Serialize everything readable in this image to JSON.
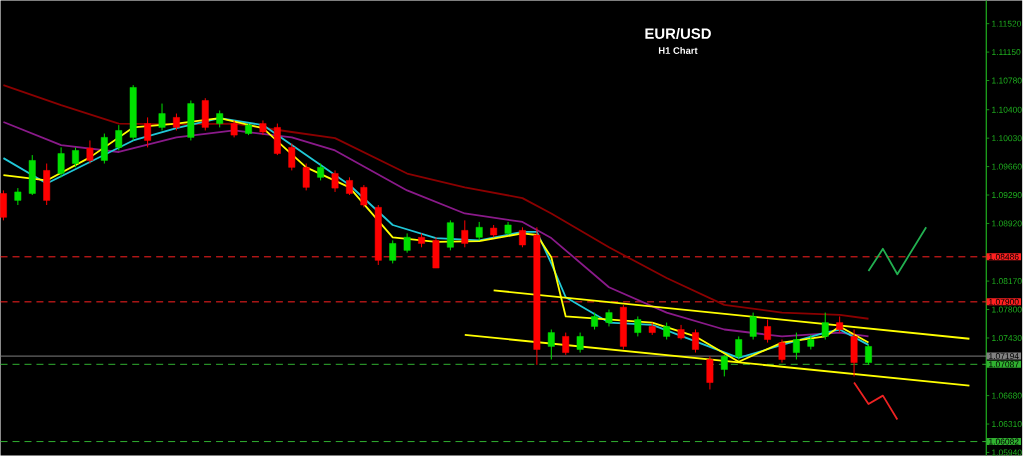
{
  "chart_data": {
    "type": "candlestick",
    "title": "EUR/USD",
    "subtitle": "H1 Chart",
    "categories": [
      null,
      null,
      null,
      null,
      null,
      null,
      null,
      null,
      null,
      null,
      null,
      null,
      null,
      null,
      null,
      null,
      null,
      null,
      null,
      null,
      null,
      null,
      null,
      null,
      null,
      null,
      null,
      null,
      null,
      null,
      null,
      null,
      null,
      null,
      null,
      null,
      null,
      null,
      null,
      null,
      null,
      null,
      null,
      null,
      null,
      null,
      null,
      null,
      null,
      null,
      null,
      null,
      null,
      null,
      null,
      null,
      null,
      null,
      null,
      null,
      null,
      null,
      null,
      null,
      null,
      null,
      null,
      null
    ],
    "ohlc": [
      [
        1.0931,
        1.0935,
        1.0896,
        1.09
      ],
      [
        1.0922,
        1.0938,
        1.0916,
        1.0933
      ],
      [
        1.0931,
        1.0981,
        1.0929,
        1.0974
      ],
      [
        1.0961,
        1.097,
        1.0916,
        1.0922
      ],
      [
        1.0957,
        1.0991,
        1.0952,
        1.0983
      ],
      [
        1.097,
        1.0991,
        1.0965,
        1.0987
      ],
      [
        1.099,
        1.1,
        1.097,
        1.0974
      ],
      [
        1.0974,
        1.1009,
        1.097,
        1.1004
      ],
      [
        1.0991,
        1.102,
        1.0987,
        1.1013
      ],
      [
        1.1004,
        1.1072,
        1.1,
        1.1069
      ],
      [
        1.1022,
        1.103,
        1.0991,
        1.1
      ],
      [
        1.1017,
        1.1048,
        1.1013,
        1.1035
      ],
      [
        1.103,
        1.1035,
        1.1013,
        1.1017
      ],
      [
        1.1004,
        1.1052,
        1.1,
        1.1048
      ],
      [
        1.1052,
        1.1055,
        1.1013,
        1.1017
      ],
      [
        1.1022,
        1.1039,
        1.1017,
        1.1035
      ],
      [
        1.1022,
        1.1026,
        1.1004,
        1.1007
      ],
      [
        1.1009,
        1.1022,
        1.1007,
        1.102
      ],
      [
        1.1022,
        1.1026,
        1.1007,
        1.1011
      ],
      [
        1.1017,
        1.1022,
        1.0981,
        1.0983
      ],
      [
        1.0991,
        1.0996,
        1.0961,
        1.0965
      ],
      [
        1.0965,
        1.097,
        1.0935,
        1.0939
      ],
      [
        1.0952,
        1.097,
        1.0948,
        1.0965
      ],
      [
        1.0957,
        1.0961,
        1.0933,
        1.0938
      ],
      [
        1.0948,
        1.0952,
        1.0929,
        1.0931
      ],
      [
        1.0939,
        1.0942,
        1.0913,
        1.0916
      ],
      [
        1.0913,
        1.0916,
        1.0838,
        1.0844
      ],
      [
        1.0844,
        1.087,
        1.084,
        1.0866
      ],
      [
        1.0857,
        1.0879,
        1.0854,
        1.0874
      ],
      [
        1.0874,
        1.0879,
        1.0861,
        1.0866
      ],
      [
        1.087,
        1.0874,
        1.0834,
        1.0834
      ],
      [
        1.0861,
        1.0896,
        1.0857,
        1.0893
      ],
      [
        1.0883,
        1.0896,
        1.0861,
        1.0866
      ],
      [
        1.0874,
        1.0894,
        1.087,
        1.0887
      ],
      [
        1.0886,
        1.089,
        1.0874,
        1.0877
      ],
      [
        1.0879,
        1.0894,
        1.0877,
        1.089
      ],
      [
        1.0883,
        1.0887,
        1.0861,
        1.0864
      ],
      [
        1.0877,
        1.0887,
        1.0708,
        1.0728
      ],
      [
        1.0732,
        1.0754,
        1.0715,
        1.075
      ],
      [
        1.0745,
        1.075,
        1.0721,
        1.0724
      ],
      [
        1.0728,
        1.075,
        1.0724,
        1.0745
      ],
      [
        1.0758,
        1.0776,
        1.0754,
        1.0771
      ],
      [
        1.0763,
        1.078,
        1.0758,
        1.0776
      ],
      [
        1.0783,
        1.0786,
        1.0728,
        1.0732
      ],
      [
        1.075,
        1.0771,
        1.0745,
        1.0767
      ],
      [
        1.0758,
        1.0763,
        1.0747,
        1.075
      ],
      [
        1.0745,
        1.0763,
        1.0741,
        1.0758
      ],
      [
        1.0754,
        1.076,
        1.0741,
        1.0743
      ],
      [
        1.075,
        1.0754,
        1.0724,
        1.0728
      ],
      [
        1.0715,
        1.0719,
        1.0676,
        1.0685
      ],
      [
        1.0702,
        1.0721,
        1.0693,
        1.0719
      ],
      [
        1.0719,
        1.0745,
        1.0715,
        1.0741
      ],
      [
        1.0745,
        1.0776,
        1.0741,
        1.0771
      ],
      [
        1.0758,
        1.0767,
        1.0737,
        1.0741
      ],
      [
        1.0737,
        1.0741,
        1.0711,
        1.0715
      ],
      [
        1.0724,
        1.075,
        1.0715,
        1.0741
      ],
      [
        1.0732,
        1.0747,
        1.0728,
        1.0741
      ],
      [
        1.0745,
        1.0776,
        1.0741,
        1.0763
      ],
      [
        1.0763,
        1.0771,
        1.075,
        1.0754
      ],
      [
        1.0745,
        1.0754,
        1.0693,
        1.0711
      ],
      [
        1.0711,
        1.0734,
        1.0708,
        1.0732
      ],
      null,
      null,
      null,
      null,
      null,
      null,
      null
    ],
    "colors": [
      "#ff0000",
      "#00e000",
      "#00e000",
      "#ff0000",
      "#00e000",
      "#00e000",
      "#ff0000",
      "#00e000",
      "#00e000",
      "#00e000",
      "#ff0000",
      "#00e000",
      "#ff0000",
      "#00e000",
      "#ff0000",
      "#00e000",
      "#ff0000",
      "#00e000",
      "#ff0000",
      "#ff0000",
      "#ff0000",
      "#ff0000",
      "#00e000",
      "#ff0000",
      "#ff0000",
      "#ff0000",
      "#ff0000",
      "#00e000",
      "#00e000",
      "#ff0000",
      "#ff0000",
      "#00e000",
      "#ff0000",
      "#00e000",
      "#ff0000",
      "#00e000",
      "#ff0000",
      "#ff0000",
      "#00e000",
      "#ff0000",
      "#00e000",
      "#00e000",
      "#00e000",
      "#ff0000",
      "#00e000",
      "#ff0000",
      "#00e000",
      "#ff0000",
      "#ff0000",
      "#ff0000",
      "#00e000",
      "#00e000",
      "#00e000",
      "#ff0000",
      "#ff0000",
      "#00e000",
      "#00e000",
      "#00e000",
      "#ff0000",
      "#ff0000",
      "#00e000",
      null,
      null,
      null,
      null,
      null,
      null,
      null
    ],
    "ylim": [
      1.059,
      1.1182
    ],
    "yticks": [
      {
        "value": 1.1152,
        "label": "1.11520"
      },
      {
        "value": 1.1115,
        "label": "1.11150"
      },
      {
        "value": 1.1078,
        "label": "1.10780"
      },
      {
        "value": 1.104,
        "label": "1.10400"
      },
      {
        "value": 1.1003,
        "label": "1.10030"
      },
      {
        "value": 1.0966,
        "label": "1.09660"
      },
      {
        "value": 1.0929,
        "label": "1.09290"
      },
      {
        "value": 1.0892,
        "label": "1.08920"
      },
      {
        "value": 1.0817,
        "label": "1.08170"
      },
      {
        "value": 1.078,
        "label": "1.07800"
      },
      {
        "value": 1.0743,
        "label": "1.07430"
      },
      {
        "value": 1.0668,
        "label": "1.06680"
      },
      {
        "value": 1.0631,
        "label": "1.06310"
      },
      {
        "value": 1.0594,
        "label": "1.05940"
      }
    ],
    "tick_labels": "y",
    "series": [
      {
        "type": "line",
        "color": "#8b0000",
        "values": [
          1.1072,
          null,
          null,
          null,
          1.1046,
          null,
          null,
          null,
          1.1022,
          null,
          null,
          null,
          1.1021,
          null,
          null,
          null,
          1.1022,
          null,
          null,
          null,
          1.1011,
          null,
          null,
          1.1003,
          null,
          null,
          null,
          null,
          1.0957,
          null,
          null,
          null,
          1.0939,
          null,
          null,
          null,
          1.0925,
          null,
          1.0905,
          null,
          null,
          null,
          1.0861,
          null,
          null,
          null,
          1.0821,
          null,
          null,
          null,
          1.0786,
          null,
          null,
          null,
          1.0776,
          null,
          null,
          null,
          1.0773,
          null,
          1.0768,
          null,
          null,
          null,
          null,
          null,
          null,
          null
        ]
      },
      {
        "type": "line",
        "color": "#8a1a8a",
        "values": [
          1.1024,
          null,
          null,
          null,
          1.0994,
          null,
          null,
          null,
          1.0985,
          null,
          null,
          null,
          1.1004,
          null,
          null,
          null,
          1.1013,
          null,
          null,
          null,
          1.1004,
          null,
          null,
          1.0987,
          null,
          null,
          null,
          null,
          1.0935,
          null,
          null,
          null,
          1.0905,
          null,
          null,
          null,
          1.0894,
          null,
          1.0873,
          null,
          null,
          null,
          1.0809,
          null,
          null,
          null,
          1.0776,
          null,
          null,
          null,
          1.0754,
          null,
          null,
          null,
          1.0745,
          null,
          null,
          null,
          1.075,
          null,
          1.0745,
          null,
          null,
          null,
          null,
          null,
          null,
          null
        ]
      },
      {
        "type": "line",
        "color": "#20c8d8",
        "values": [
          1.0977,
          null,
          null,
          1.0944,
          null,
          null,
          1.0972,
          null,
          null,
          1.1,
          null,
          null,
          1.1016,
          null,
          null,
          1.1029,
          null,
          null,
          1.102,
          null,
          null,
          1.0981,
          null,
          null,
          1.0942,
          null,
          null,
          1.089,
          null,
          null,
          1.0873,
          null,
          null,
          1.087,
          null,
          null,
          1.0881,
          1.0881,
          1.084,
          1.0796,
          null,
          null,
          1.0763,
          null,
          null,
          1.076,
          null,
          null,
          null,
          null,
          null,
          1.0717,
          null,
          null,
          1.0734,
          null,
          null,
          1.075,
          1.0754,
          null,
          1.0734,
          null,
          null,
          null,
          null,
          null,
          null,
          null
        ]
      },
      {
        "type": "line",
        "color": "#ffff00",
        "values": [
          1.0955,
          null,
          null,
          1.0948,
          null,
          null,
          1.0978,
          null,
          null,
          1.1017,
          null,
          null,
          1.1022,
          null,
          null,
          1.1029,
          null,
          null,
          1.1016,
          null,
          null,
          1.0965,
          null,
          null,
          1.0939,
          null,
          null,
          1.0874,
          null,
          null,
          1.0868,
          null,
          null,
          1.0869,
          null,
          null,
          1.0879,
          1.0877,
          1.0848,
          1.0771,
          null,
          null,
          1.0767,
          null,
          null,
          1.0763,
          null,
          null,
          1.0745,
          null,
          null,
          1.0712,
          null,
          null,
          1.0737,
          null,
          null,
          1.0745,
          1.0758,
          null,
          1.0737,
          null,
          null,
          null,
          null,
          null,
          null,
          null
        ]
      },
      {
        "type": "line",
        "color": "#ffff00",
        "values": [
          null,
          null,
          null,
          null,
          null,
          null,
          null,
          null,
          null,
          null,
          null,
          null,
          null,
          null,
          null,
          null,
          null,
          null,
          null,
          null,
          null,
          null,
          null,
          null,
          null,
          null,
          null,
          null,
          null,
          null,
          null,
          null,
          null,
          null,
          1.0805,
          null,
          null,
          null,
          null,
          null,
          null,
          null,
          null,
          null,
          null,
          null,
          null,
          null,
          null,
          null,
          null,
          null,
          null,
          null,
          null,
          null,
          null,
          null,
          null,
          null,
          null,
          null,
          null,
          null,
          null,
          null,
          null,
          1.0742
        ]
      },
      {
        "type": "line",
        "color": "#ffff00",
        "values": [
          null,
          null,
          null,
          null,
          null,
          null,
          null,
          null,
          null,
          null,
          null,
          null,
          null,
          null,
          null,
          null,
          null,
          null,
          null,
          null,
          null,
          null,
          null,
          null,
          null,
          null,
          null,
          null,
          null,
          null,
          null,
          null,
          1.0747,
          null,
          null,
          null,
          null,
          null,
          null,
          null,
          null,
          null,
          null,
          null,
          null,
          null,
          null,
          null,
          null,
          null,
          null,
          null,
          null,
          null,
          null,
          null,
          null,
          null,
          null,
          null,
          null,
          null,
          null,
          null,
          null,
          null,
          null,
          1.0681
        ]
      },
      {
        "type": "line",
        "color": "#22b050",
        "values": [
          null,
          null,
          null,
          null,
          null,
          null,
          null,
          null,
          null,
          null,
          null,
          null,
          null,
          null,
          null,
          null,
          null,
          null,
          null,
          null,
          null,
          null,
          null,
          null,
          null,
          null,
          null,
          null,
          null,
          null,
          null,
          null,
          null,
          null,
          null,
          null,
          null,
          null,
          null,
          null,
          null,
          null,
          null,
          null,
          null,
          null,
          null,
          null,
          null,
          null,
          null,
          null,
          null,
          null,
          null,
          null,
          null,
          null,
          null,
          null,
          1.083,
          1.0859,
          1.0826,
          null,
          1.0887,
          null,
          null,
          null
        ]
      },
      {
        "type": "line",
        "color": "#ee2222",
        "values": [
          null,
          null,
          null,
          null,
          null,
          null,
          null,
          null,
          null,
          null,
          null,
          null,
          null,
          null,
          null,
          null,
          null,
          null,
          null,
          null,
          null,
          null,
          null,
          null,
          null,
          null,
          null,
          null,
          null,
          null,
          null,
          null,
          null,
          null,
          null,
          null,
          null,
          null,
          null,
          null,
          null,
          null,
          null,
          null,
          null,
          null,
          null,
          null,
          null,
          null,
          null,
          null,
          null,
          null,
          null,
          null,
          null,
          null,
          null,
          1.0685,
          1.0657,
          1.0668,
          1.0637,
          null,
          null,
          null,
          null,
          null
        ]
      }
    ],
    "ref_lines": [
      {
        "axis": "y",
        "value": 1.08486,
        "label": "1.08486",
        "color": "#ff2020",
        "line_style": "dashed"
      },
      {
        "axis": "y",
        "value": 1.079,
        "label": "1.07900",
        "color": "#ff2020",
        "line_style": "dashed"
      },
      {
        "axis": "y",
        "value": 1.07194,
        "label": "1.07194",
        "color": "#808080",
        "line_style": "solid"
      },
      {
        "axis": "y",
        "value": 1.07087,
        "label": "1.07087",
        "color": "#30b030",
        "line_style": "dashed"
      },
      {
        "axis": "y",
        "value": 1.06082,
        "label": "1.06082",
        "color": "#30b030",
        "line_style": "dashed"
      }
    ]
  }
}
